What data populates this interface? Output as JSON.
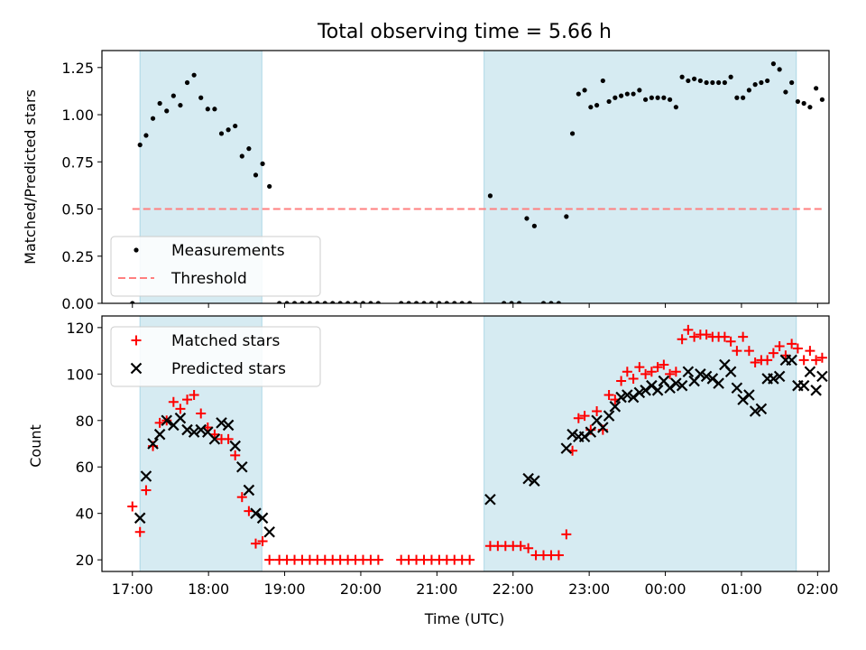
{
  "colors": {
    "shade": "#add8e6",
    "measurement": "#000000",
    "threshold": "#ff7f7f",
    "matched": "#ff0000",
    "predicted": "#000000"
  },
  "chart_data": [
    {
      "type": "scatter",
      "title": "Total observing time = 5.66 h",
      "xlabel": "",
      "ylabel": "Matched/Predicted stars",
      "x_unit": "hours since 17:00 UTC",
      "xlim": [
        -0.4,
        9.15
      ],
      "ylim": [
        0,
        1.34
      ],
      "yticks": [
        "0.00",
        "0.25",
        "0.50",
        "0.75",
        "1.00",
        "1.25"
      ],
      "shaded_intervals": [
        [
          0.1,
          1.7
        ],
        [
          4.62,
          8.72
        ]
      ],
      "threshold": {
        "name": "Threshold",
        "value": 0.5,
        "style": "dashed"
      },
      "legend": [
        "Measurements",
        "Threshold"
      ],
      "legend_position": "lower-left",
      "series": [
        {
          "name": "Measurements",
          "marker": "dot",
          "points": [
            [
              0.0,
              0.0
            ],
            [
              0.1,
              0.84
            ],
            [
              0.18,
              0.89
            ],
            [
              0.27,
              0.98
            ],
            [
              0.36,
              1.06
            ],
            [
              0.45,
              1.02
            ],
            [
              0.54,
              1.1
            ],
            [
              0.63,
              1.05
            ],
            [
              0.72,
              1.17
            ],
            [
              0.81,
              1.21
            ],
            [
              0.9,
              1.09
            ],
            [
              0.99,
              1.03
            ],
            [
              1.08,
              1.03
            ],
            [
              1.17,
              0.9
            ],
            [
              1.26,
              0.92
            ],
            [
              1.35,
              0.94
            ],
            [
              1.44,
              0.78
            ],
            [
              1.53,
              0.82
            ],
            [
              1.62,
              0.68
            ],
            [
              1.71,
              0.74
            ],
            [
              1.8,
              0.62
            ],
            [
              1.93,
              0.0
            ],
            [
              2.03,
              0.0
            ],
            [
              2.13,
              0.0
            ],
            [
              2.23,
              0.0
            ],
            [
              2.33,
              0.0
            ],
            [
              2.43,
              0.0
            ],
            [
              2.53,
              0.0
            ],
            [
              2.63,
              0.0
            ],
            [
              2.73,
              0.0
            ],
            [
              2.83,
              0.0
            ],
            [
              2.93,
              0.0
            ],
            [
              3.03,
              0.0
            ],
            [
              3.13,
              0.0
            ],
            [
              3.23,
              0.0
            ],
            [
              3.53,
              0.0
            ],
            [
              3.63,
              0.0
            ],
            [
              3.73,
              0.0
            ],
            [
              3.83,
              0.0
            ],
            [
              3.93,
              0.0
            ],
            [
              4.03,
              0.0
            ],
            [
              4.13,
              0.0
            ],
            [
              4.23,
              0.0
            ],
            [
              4.33,
              0.0
            ],
            [
              4.43,
              0.0
            ],
            [
              4.7,
              0.57
            ],
            [
              4.88,
              0.0
            ],
            [
              4.98,
              0.0
            ],
            [
              5.08,
              0.0
            ],
            [
              5.18,
              0.45
            ],
            [
              5.28,
              0.41
            ],
            [
              5.4,
              0.0
            ],
            [
              5.5,
              0.0
            ],
            [
              5.6,
              0.0
            ],
            [
              5.7,
              0.46
            ],
            [
              5.78,
              0.9
            ],
            [
              5.86,
              1.11
            ],
            [
              5.94,
              1.13
            ],
            [
              6.02,
              1.04
            ],
            [
              6.1,
              1.05
            ],
            [
              6.18,
              1.18
            ],
            [
              6.26,
              1.07
            ],
            [
              6.34,
              1.09
            ],
            [
              6.42,
              1.1
            ],
            [
              6.5,
              1.11
            ],
            [
              6.58,
              1.11
            ],
            [
              6.66,
              1.13
            ],
            [
              6.74,
              1.08
            ],
            [
              6.82,
              1.09
            ],
            [
              6.9,
              1.09
            ],
            [
              6.98,
              1.09
            ],
            [
              7.06,
              1.08
            ],
            [
              7.14,
              1.04
            ],
            [
              7.22,
              1.2
            ],
            [
              7.3,
              1.18
            ],
            [
              7.38,
              1.19
            ],
            [
              7.46,
              1.18
            ],
            [
              7.54,
              1.17
            ],
            [
              7.62,
              1.17
            ],
            [
              7.7,
              1.17
            ],
            [
              7.78,
              1.17
            ],
            [
              7.86,
              1.2
            ],
            [
              7.94,
              1.09
            ],
            [
              8.02,
              1.09
            ],
            [
              8.1,
              1.13
            ],
            [
              8.18,
              1.16
            ],
            [
              8.26,
              1.17
            ],
            [
              8.34,
              1.18
            ],
            [
              8.42,
              1.27
            ],
            [
              8.5,
              1.24
            ],
            [
              8.58,
              1.12
            ],
            [
              8.66,
              1.17
            ],
            [
              8.74,
              1.07
            ],
            [
              8.82,
              1.06
            ],
            [
              8.9,
              1.04
            ],
            [
              8.98,
              1.14
            ],
            [
              9.06,
              1.08
            ]
          ]
        }
      ]
    },
    {
      "type": "scatter",
      "title": "",
      "xlabel": "Time (UTC)",
      "ylabel": "Count",
      "x_unit": "hours since 17:00 UTC",
      "xlim": [
        -0.4,
        9.15
      ],
      "ylim": [
        15,
        125
      ],
      "yticks": [
        "20",
        "40",
        "60",
        "80",
        "100",
        "120"
      ],
      "xticks": [
        "17:00",
        "18:00",
        "19:00",
        "20:00",
        "21:00",
        "22:00",
        "23:00",
        "00:00",
        "01:00",
        "02:00"
      ],
      "shaded_intervals": [
        [
          0.1,
          1.7
        ],
        [
          4.62,
          8.72
        ]
      ],
      "legend": [
        "Matched stars",
        "Predicted stars"
      ],
      "legend_position": "upper-left",
      "series": [
        {
          "name": "Matched stars",
          "marker": "plus",
          "points": [
            [
              0.0,
              43
            ],
            [
              0.1,
              32
            ],
            [
              0.18,
              50
            ],
            [
              0.27,
              69
            ],
            [
              0.36,
              79
            ],
            [
              0.45,
              80
            ],
            [
              0.54,
              88
            ],
            [
              0.63,
              85
            ],
            [
              0.72,
              89
            ],
            [
              0.81,
              91
            ],
            [
              0.9,
              83
            ],
            [
              0.99,
              77
            ],
            [
              1.08,
              74
            ],
            [
              1.17,
              72
            ],
            [
              1.26,
              72
            ],
            [
              1.35,
              65
            ],
            [
              1.44,
              47
            ],
            [
              1.53,
              41
            ],
            [
              1.62,
              27
            ],
            [
              1.71,
              28
            ],
            [
              1.8,
              20
            ],
            [
              1.93,
              20
            ],
            [
              2.03,
              20
            ],
            [
              2.13,
              20
            ],
            [
              2.23,
              20
            ],
            [
              2.33,
              20
            ],
            [
              2.43,
              20
            ],
            [
              2.53,
              20
            ],
            [
              2.63,
              20
            ],
            [
              2.73,
              20
            ],
            [
              2.83,
              20
            ],
            [
              2.93,
              20
            ],
            [
              3.03,
              20
            ],
            [
              3.13,
              20
            ],
            [
              3.23,
              20
            ],
            [
              3.53,
              20
            ],
            [
              3.63,
              20
            ],
            [
              3.73,
              20
            ],
            [
              3.83,
              20
            ],
            [
              3.93,
              20
            ],
            [
              4.03,
              20
            ],
            [
              4.13,
              20
            ],
            [
              4.23,
              20
            ],
            [
              4.33,
              20
            ],
            [
              4.43,
              20
            ],
            [
              4.7,
              26
            ],
            [
              4.8,
              26
            ],
            [
              4.9,
              26
            ],
            [
              5.0,
              26
            ],
            [
              5.1,
              26
            ],
            [
              5.2,
              25
            ],
            [
              5.3,
              22
            ],
            [
              5.4,
              22
            ],
            [
              5.5,
              22
            ],
            [
              5.6,
              22
            ],
            [
              5.7,
              31
            ],
            [
              5.78,
              67
            ],
            [
              5.86,
              81
            ],
            [
              5.94,
              82
            ],
            [
              6.02,
              76
            ],
            [
              6.1,
              84
            ],
            [
              6.18,
              76
            ],
            [
              6.26,
              91
            ],
            [
              6.34,
              89
            ],
            [
              6.42,
              97
            ],
            [
              6.5,
              101
            ],
            [
              6.58,
              98
            ],
            [
              6.66,
              103
            ],
            [
              6.74,
              100
            ],
            [
              6.82,
              101
            ],
            [
              6.9,
              103
            ],
            [
              6.98,
              104
            ],
            [
              7.06,
              100
            ],
            [
              7.14,
              101
            ],
            [
              7.22,
              115
            ],
            [
              7.3,
              119
            ],
            [
              7.38,
              116
            ],
            [
              7.46,
              117
            ],
            [
              7.54,
              117
            ],
            [
              7.62,
              116
            ],
            [
              7.7,
              116
            ],
            [
              7.78,
              116
            ],
            [
              7.86,
              114
            ],
            [
              7.94,
              110
            ],
            [
              8.02,
              116
            ],
            [
              8.1,
              110
            ],
            [
              8.18,
              105
            ],
            [
              8.26,
              106
            ],
            [
              8.34,
              106
            ],
            [
              8.42,
              109
            ],
            [
              8.5,
              112
            ],
            [
              8.58,
              108
            ],
            [
              8.66,
              113
            ],
            [
              8.74,
              111
            ],
            [
              8.82,
              106
            ],
            [
              8.9,
              110
            ],
            [
              8.98,
              106
            ],
            [
              9.06,
              107
            ]
          ]
        },
        {
          "name": "Predicted stars",
          "marker": "x",
          "points": [
            [
              0.1,
              38
            ],
            [
              0.18,
              56
            ],
            [
              0.27,
              70
            ],
            [
              0.36,
              74
            ],
            [
              0.45,
              80
            ],
            [
              0.54,
              78
            ],
            [
              0.63,
              81
            ],
            [
              0.72,
              76
            ],
            [
              0.81,
              75
            ],
            [
              0.9,
              76
            ],
            [
              0.99,
              75
            ],
            [
              1.08,
              72
            ],
            [
              1.17,
              79
            ],
            [
              1.26,
              78
            ],
            [
              1.35,
              69
            ],
            [
              1.44,
              60
            ],
            [
              1.53,
              50
            ],
            [
              1.62,
              40
            ],
            [
              1.71,
              38
            ],
            [
              1.8,
              32
            ],
            [
              4.7,
              46
            ],
            [
              5.2,
              55
            ],
            [
              5.28,
              54
            ],
            [
              5.7,
              68
            ],
            [
              5.78,
              74
            ],
            [
              5.86,
              73
            ],
            [
              5.94,
              73
            ],
            [
              6.02,
              75
            ],
            [
              6.1,
              80
            ],
            [
              6.18,
              77
            ],
            [
              6.26,
              82
            ],
            [
              6.34,
              86
            ],
            [
              6.42,
              90
            ],
            [
              6.5,
              91
            ],
            [
              6.58,
              90
            ],
            [
              6.66,
              92
            ],
            [
              6.74,
              93
            ],
            [
              6.82,
              95
            ],
            [
              6.9,
              93
            ],
            [
              6.98,
              97
            ],
            [
              7.06,
              94
            ],
            [
              7.14,
              96
            ],
            [
              7.22,
              95
            ],
            [
              7.3,
              101
            ],
            [
              7.38,
              97
            ],
            [
              7.46,
              100
            ],
            [
              7.54,
              99
            ],
            [
              7.62,
              98
            ],
            [
              7.7,
              96
            ],
            [
              7.78,
              104
            ],
            [
              7.86,
              101
            ],
            [
              7.94,
              94
            ],
            [
              8.02,
              89
            ],
            [
              8.1,
              91
            ],
            [
              8.18,
              84
            ],
            [
              8.26,
              85
            ],
            [
              8.34,
              98
            ],
            [
              8.42,
              98
            ],
            [
              8.5,
              99
            ],
            [
              8.58,
              106
            ],
            [
              8.66,
              106
            ],
            [
              8.74,
              95
            ],
            [
              8.82,
              95
            ],
            [
              8.9,
              101
            ],
            [
              8.98,
              93
            ],
            [
              9.06,
              99
            ]
          ]
        }
      ]
    }
  ]
}
